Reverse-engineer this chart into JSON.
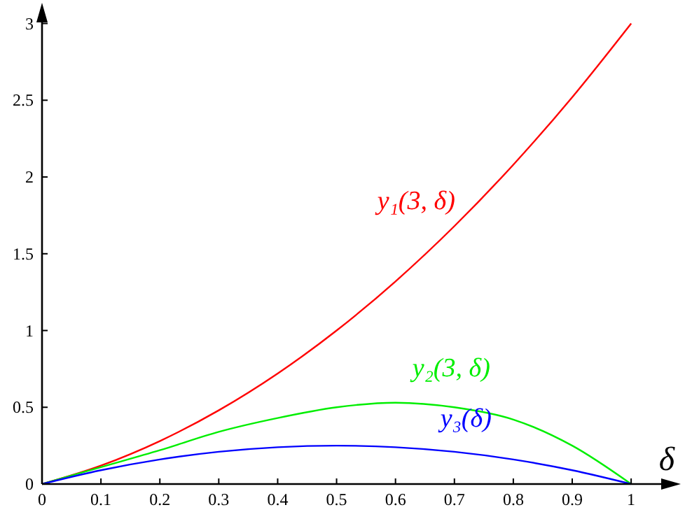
{
  "chart_data": {
    "type": "line",
    "xlabel": "δ",
    "x": [
      0,
      0.1,
      0.2,
      0.3,
      0.4,
      0.5,
      0.6,
      0.7,
      0.8,
      0.9,
      1
    ],
    "series": [
      {
        "name": "y₁(3, δ)",
        "color": "#ff0000",
        "values": [
          0,
          0.12,
          0.28,
          0.48,
          0.72,
          1.0,
          1.32,
          1.68,
          2.08,
          2.52,
          3
        ]
      },
      {
        "name": "y₂(3, δ)",
        "color": "#00ee00",
        "values": [
          0,
          0.11,
          0.22,
          0.34,
          0.43,
          0.5,
          0.53,
          0.5,
          0.42,
          0.25,
          0
        ]
      },
      {
        "name": "y₃(δ)",
        "color": "#0000ff",
        "values": [
          0,
          0.09,
          0.16,
          0.21,
          0.24,
          0.25,
          0.24,
          0.21,
          0.16,
          0.09,
          0
        ]
      }
    ],
    "xlim": [
      0,
      1.07
    ],
    "ylim": [
      0,
      3.08
    ],
    "xticks": [
      0,
      0.1,
      0.2,
      0.3,
      0.4,
      0.5,
      0.6,
      0.7,
      0.8,
      0.9,
      1
    ],
    "yticks": [
      0,
      0.5,
      1,
      1.5,
      2,
      2.5,
      3
    ],
    "grid": false,
    "marker": "none",
    "line_style": "solid"
  }
}
